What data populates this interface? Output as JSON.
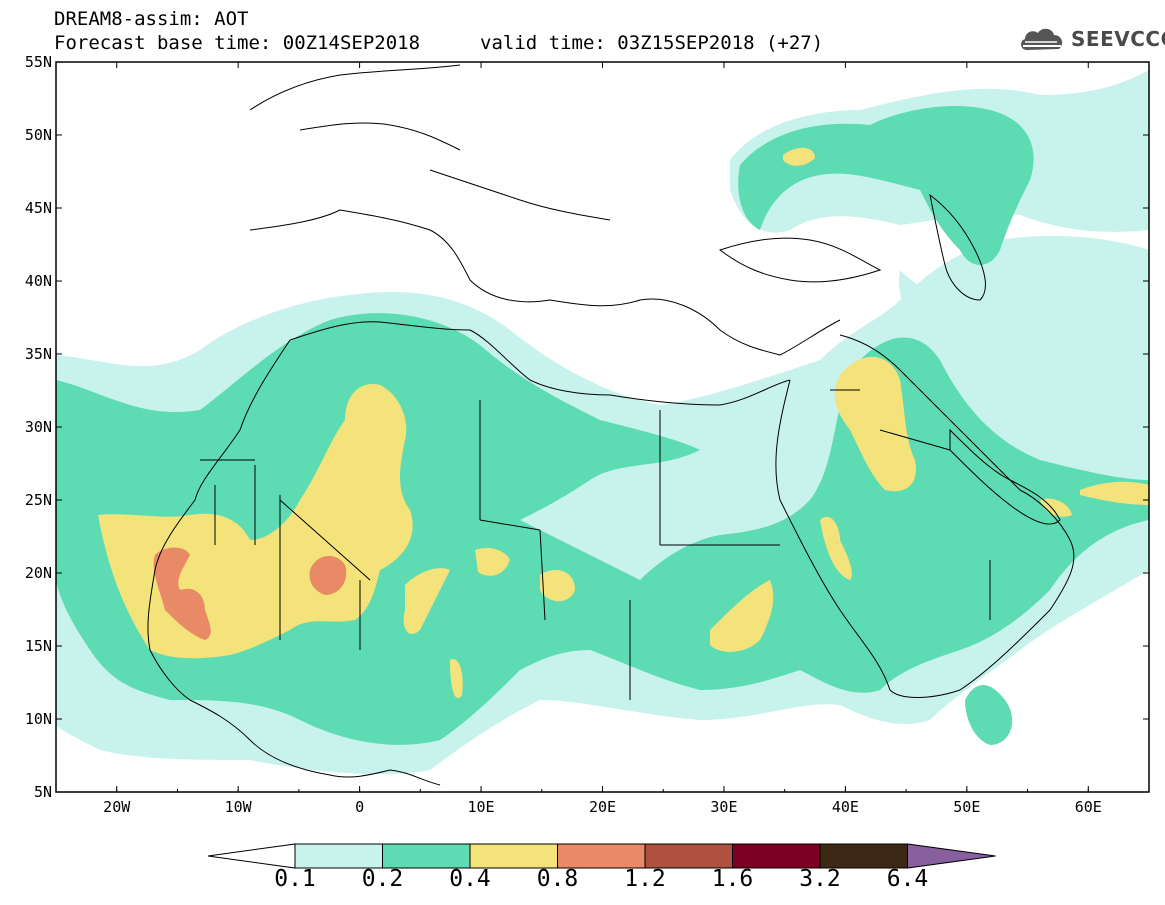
{
  "header": {
    "title_line1": "DREAM8-assim: AOT",
    "title_line2": "Forecast base time: 00Z14SEP2018",
    "valid_time": "valid time: 03Z15SEP2018 (+27)"
  },
  "logo": {
    "text": "SEEVCCC",
    "icon": "cloud-icon"
  },
  "map": {
    "region": "North Africa, Europe, Middle East",
    "lat_labels": [
      "55N",
      "50N",
      "45N",
      "40N",
      "35N",
      "30N",
      "25N",
      "20N",
      "15N",
      "10N",
      "5N"
    ],
    "lon_labels": [
      "20W",
      "10W",
      "0",
      "10E",
      "20E",
      "30E",
      "40E",
      "50E",
      "60E"
    ],
    "lat_range": [
      5,
      55
    ],
    "lon_range": [
      -25,
      65
    ]
  },
  "legend": {
    "labels": [
      "0.1",
      "0.2",
      "0.4",
      "0.8",
      "1.2",
      "1.6",
      "3.2",
      "6.4"
    ],
    "colors": [
      "#ffffff",
      "#c8f2ec",
      "#5ddcb3",
      "#f4e27a",
      "#e88a66",
      "#b0503e",
      "#7c0021",
      "#3d2715",
      "#8860a0"
    ]
  }
}
